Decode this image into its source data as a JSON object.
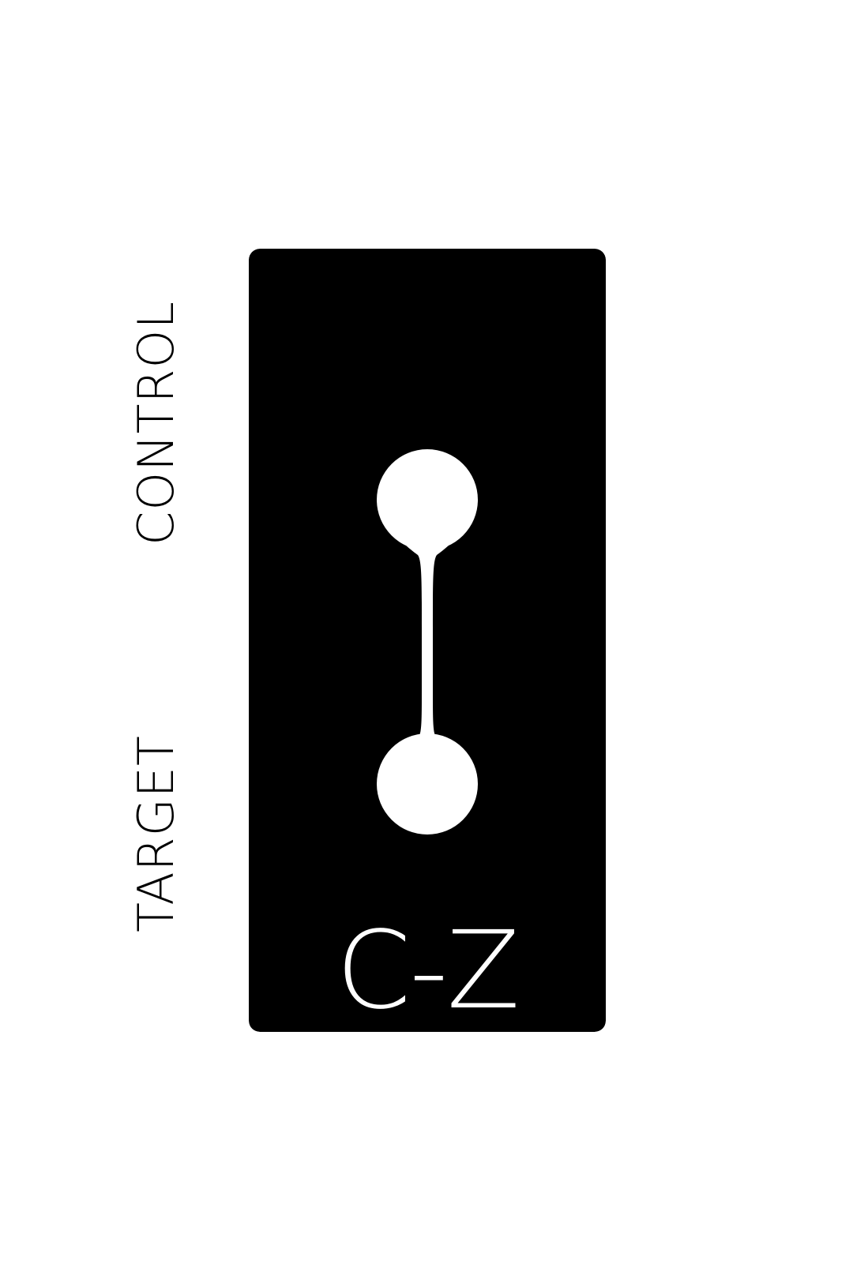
{
  "labels": {
    "control": "CONTROL",
    "target": "TARGET"
  },
  "gate": {
    "name": "C-Z"
  },
  "colors": {
    "background": "#ffffff",
    "card": "#000000",
    "symbol": "#ffffff",
    "label_text": "#000000"
  },
  "icons": {
    "symbol": "controlled-z-dumbbell-icon"
  }
}
